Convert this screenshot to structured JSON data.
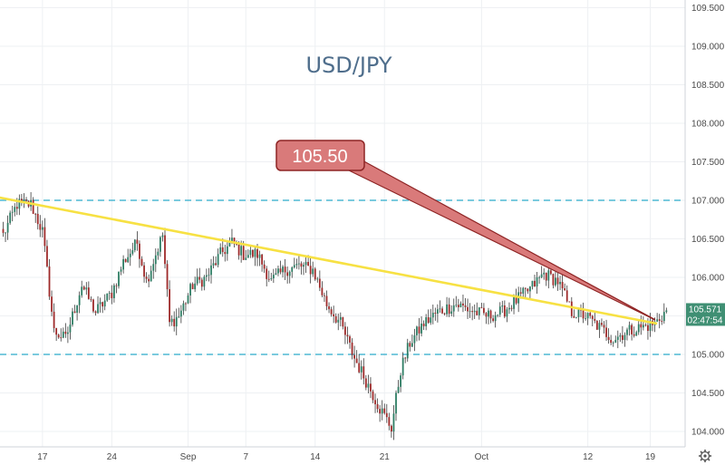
{
  "chart_data": {
    "type": "candlestick",
    "title": "USD/JPY",
    "symbol": "USD/JPY",
    "xlabel": "",
    "ylabel": "",
    "ylim": [
      103.8,
      109.6
    ],
    "y_ticks": [
      "109.500",
      "109.000",
      "108.500",
      "108.000",
      "107.500",
      "107.000",
      "106.500",
      "106.000",
      "105.500",
      "105.000",
      "104.500",
      "104.000"
    ],
    "x_ticks": [
      {
        "label": "17",
        "index": 17
      },
      {
        "label": "24",
        "index": 47
      },
      {
        "label": "Sep",
        "index": 80
      },
      {
        "label": "7",
        "index": 105
      },
      {
        "label": "14",
        "index": 135
      },
      {
        "label": "21",
        "index": 165
      },
      {
        "label": "Oct",
        "index": 207
      },
      {
        "label": "12",
        "index": 253
      },
      {
        "label": "19",
        "index": 280
      }
    ],
    "candle_count": 288,
    "candles_anchor_close": [
      [
        0,
        106.55
      ],
      [
        6,
        106.95
      ],
      [
        12,
        106.95
      ],
      [
        17,
        106.6
      ],
      [
        22,
        105.3
      ],
      [
        27,
        105.2
      ],
      [
        34,
        105.9
      ],
      [
        40,
        105.55
      ],
      [
        47,
        105.8
      ],
      [
        52,
        106.2
      ],
      [
        58,
        106.45
      ],
      [
        62,
        105.95
      ],
      [
        66,
        106.3
      ],
      [
        69,
        106.55
      ],
      [
        72,
        105.4
      ],
      [
        76,
        105.5
      ],
      [
        82,
        105.9
      ],
      [
        88,
        106.0
      ],
      [
        94,
        106.3
      ],
      [
        99,
        106.45
      ],
      [
        104,
        106.3
      ],
      [
        110,
        106.3
      ],
      [
        116,
        105.95
      ],
      [
        122,
        106.1
      ],
      [
        128,
        106.15
      ],
      [
        134,
        106.1
      ],
      [
        140,
        105.65
      ],
      [
        146,
        105.4
      ],
      [
        152,
        104.95
      ],
      [
        158,
        104.6
      ],
      [
        163,
        104.3
      ],
      [
        168,
        104.05
      ],
      [
        172,
        104.8
      ],
      [
        176,
        105.15
      ],
      [
        182,
        105.4
      ],
      [
        188,
        105.55
      ],
      [
        196,
        105.65
      ],
      [
        204,
        105.55
      ],
      [
        210,
        105.5
      ],
      [
        216,
        105.55
      ],
      [
        222,
        105.7
      ],
      [
        228,
        105.85
      ],
      [
        234,
        106.05
      ],
      [
        240,
        105.95
      ],
      [
        246,
        105.55
      ],
      [
        252,
        105.5
      ],
      [
        258,
        105.35
      ],
      [
        264,
        105.2
      ],
      [
        270,
        105.3
      ],
      [
        276,
        105.35
      ],
      [
        282,
        105.4
      ],
      [
        287,
        105.57
      ]
    ],
    "last_price": "105.571",
    "countdown": "02:47:54",
    "horizontal_levels": [
      107.0,
      105.0
    ],
    "trendlines": [
      {
        "name": "yellow-trendline",
        "color": "#f7e143",
        "from": {
          "index": -4,
          "price": 107.05
        },
        "to": {
          "index": 283,
          "price": 105.4
        }
      },
      {
        "name": "red-trendline",
        "color": "#9b2a2a",
        "from": {
          "index": 245,
          "price": 106.05
        },
        "to": {
          "index": 282,
          "price": 105.45
        }
      }
    ],
    "annotations": [
      {
        "text": "105.50",
        "target_price": 105.5
      }
    ]
  },
  "colors": {
    "up": "#26a69a",
    "down": "#ef5350",
    "wick": "#3a3a3a",
    "body_up": "#2e7d64",
    "body_down": "#9e2a2a",
    "level": "#4fb8d4",
    "grid": "#eef0f3",
    "tag_bg": "#3f8f73",
    "callout_bg": "#d97a7a",
    "callout_border": "#8e2424"
  }
}
